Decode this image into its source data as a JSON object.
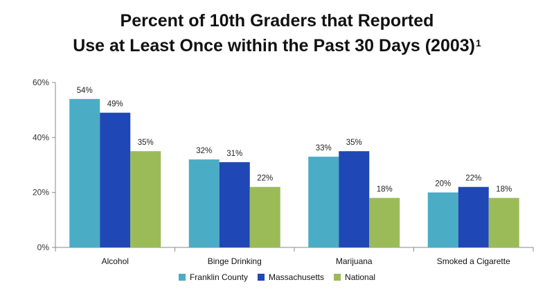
{
  "chart_data": {
    "type": "bar",
    "title_line1": "Percent of 10th Graders that Reported",
    "title_line2": "Use at Least Once within the Past 30 Days (2003)",
    "title_superscript": "1",
    "categories": [
      "Alcohol",
      "Binge Drinking",
      "Marijuana",
      "Smoked a Cigarette"
    ],
    "series": [
      {
        "name": "Franklin County",
        "color": "#4BACC6",
        "values": [
          54,
          32,
          33,
          20
        ],
        "labels": [
          "54%",
          "32%",
          "33%",
          "20%"
        ]
      },
      {
        "name": "Massachusetts",
        "color": "#1F47B5",
        "values": [
          49,
          31,
          35,
          22
        ],
        "labels": [
          "49%",
          "31%",
          "35%",
          "22%"
        ]
      },
      {
        "name": "National",
        "color": "#9BBB59",
        "values": [
          35,
          22,
          18,
          18
        ],
        "labels": [
          "35%",
          "22%",
          "18%",
          "18%"
        ]
      }
    ],
    "ylim": [
      0,
      60
    ],
    "yticks": [
      0,
      20,
      40,
      60
    ],
    "ytick_labels": [
      "0%",
      "20%",
      "40%",
      "60%"
    ],
    "xlabel": "",
    "ylabel": "",
    "grid": false,
    "legend_position": "bottom"
  }
}
